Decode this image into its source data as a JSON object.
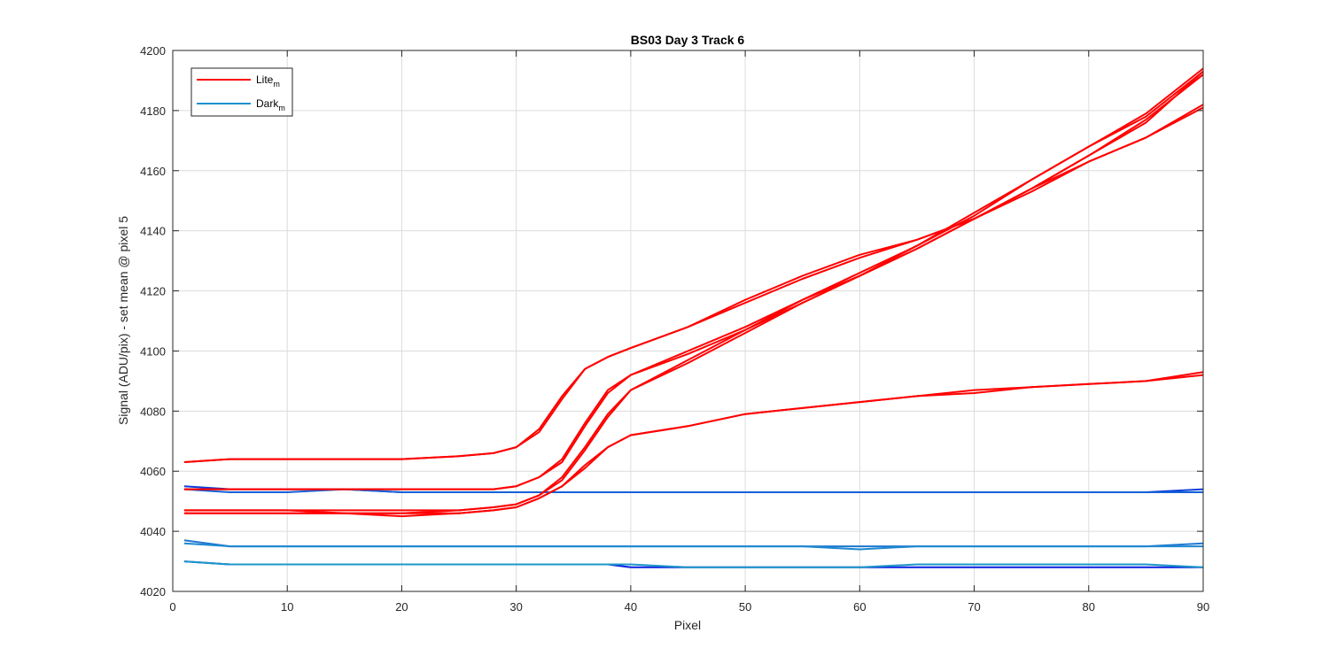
{
  "chart_data": {
    "type": "line",
    "title": "BS03 Day 3 Track 6",
    "xlabel": "Pixel",
    "ylabel": "Signal (ADU/pix) - set mean @ pixel 5",
    "xlim": [
      0,
      90
    ],
    "ylim": [
      4020,
      4200
    ],
    "xticks": [
      0,
      10,
      20,
      30,
      40,
      50,
      60,
      70,
      80,
      90
    ],
    "yticks": [
      4020,
      4040,
      4060,
      4080,
      4100,
      4120,
      4140,
      4160,
      4180,
      4200
    ],
    "grid": true,
    "legend": {
      "placement": "top-left",
      "entries": [
        {
          "label": "Lite",
          "subscript": "m",
          "color": "#ff0000"
        },
        {
          "label": "Dark",
          "subscript": "m",
          "color": "#1e90d0"
        }
      ]
    },
    "x": [
      1,
      5,
      10,
      15,
      20,
      25,
      28,
      30,
      32,
      34,
      36,
      38,
      40,
      45,
      50,
      55,
      60,
      65,
      70,
      75,
      80,
      85,
      90
    ],
    "series": [
      {
        "group": "Lite",
        "color": "#ff0000",
        "values": [
          4063,
          4064,
          4064,
          4064,
          4064,
          4065,
          4066,
          4068,
          4074,
          4085,
          4094,
          4098,
          4101,
          4108,
          4116,
          4124,
          4131,
          4137,
          4144,
          4154,
          4165,
          4177,
          4192
        ]
      },
      {
        "group": "Lite",
        "color": "#ff0000",
        "values": [
          4063,
          4064,
          4064,
          4064,
          4064,
          4065,
          4066,
          4068,
          4073,
          4084,
          4094,
          4098,
          4101,
          4108,
          4117,
          4125,
          4132,
          4137,
          4144,
          4154,
          4165,
          4176,
          4193
        ]
      },
      {
        "group": "Lite",
        "color": "#ff0000",
        "values": [
          4054,
          4054,
          4054,
          4054,
          4054,
          4054,
          4054,
          4055,
          4058,
          4064,
          4076,
          4087,
          4092,
          4100,
          4108,
          4117,
          4125,
          4134,
          4144,
          4154,
          4163,
          4171,
          4182
        ]
      },
      {
        "group": "Lite",
        "color": "#ff0000",
        "values": [
          4054,
          4054,
          4054,
          4054,
          4054,
          4054,
          4054,
          4055,
          4058,
          4063,
          4075,
          4086,
          4092,
          4099,
          4107,
          4116,
          4125,
          4134,
          4144,
          4153,
          4163,
          4171,
          4181
        ]
      },
      {
        "group": "Lite",
        "color": "#ff0000",
        "values": [
          4047,
          4047,
          4047,
          4047,
          4047,
          4047,
          4048,
          4049,
          4052,
          4058,
          4068,
          4079,
          4087,
          4097,
          4107,
          4117,
          4126,
          4135,
          4146,
          4157,
          4168,
          4178,
          4193
        ]
      },
      {
        "group": "Lite",
        "color": "#ff0000",
        "values": [
          4047,
          4047,
          4047,
          4046,
          4046,
          4047,
          4048,
          4049,
          4052,
          4057,
          4067,
          4078,
          4087,
          4096,
          4106,
          4116,
          4125,
          4135,
          4145,
          4157,
          4168,
          4179,
          4194
        ]
      },
      {
        "group": "Lite",
        "color": "#ff0000",
        "values": [
          4046,
          4046,
          4046,
          4046,
          4046,
          4046,
          4047,
          4048,
          4051,
          4055,
          4062,
          4068,
          4072,
          4075,
          4079,
          4081,
          4083,
          4085,
          4086,
          4088,
          4089,
          4090,
          4092
        ]
      },
      {
        "group": "Lite",
        "color": "#ff0000",
        "values": [
          4046,
          4046,
          4046,
          4046,
          4045,
          4046,
          4047,
          4048,
          4051,
          4055,
          4061,
          4068,
          4072,
          4075,
          4079,
          4081,
          4083,
          4085,
          4087,
          4088,
          4089,
          4090,
          4093
        ]
      },
      {
        "group": "Dark",
        "color": "#0a3ed8",
        "values": [
          4055,
          4054,
          4054,
          4054,
          4053,
          4053,
          4053,
          4053,
          4053,
          4053,
          4053,
          4053,
          4053,
          4053,
          4053,
          4053,
          4053,
          4053,
          4053,
          4053,
          4053,
          4053,
          4054
        ]
      },
      {
        "group": "Dark",
        "color": "#1560d8",
        "values": [
          4054,
          4053,
          4053,
          4054,
          4053,
          4053,
          4053,
          4053,
          4053,
          4053,
          4053,
          4053,
          4053,
          4053,
          4053,
          4053,
          4053,
          4053,
          4053,
          4053,
          4053,
          4053,
          4053
        ]
      },
      {
        "group": "Dark",
        "color": "#1e78d0",
        "values": [
          4037,
          4035,
          4035,
          4035,
          4035,
          4035,
          4035,
          4035,
          4035,
          4035,
          4035,
          4035,
          4035,
          4035,
          4035,
          4035,
          4035,
          4035,
          4035,
          4035,
          4035,
          4035,
          4036
        ]
      },
      {
        "group": "Dark",
        "color": "#1e88d0",
        "values": [
          4036,
          4035,
          4035,
          4035,
          4035,
          4035,
          4035,
          4035,
          4035,
          4035,
          4035,
          4035,
          4035,
          4035,
          4035,
          4035,
          4034,
          4035,
          4035,
          4035,
          4035,
          4035,
          4035
        ]
      },
      {
        "group": "Dark",
        "color": "#0a20e0",
        "values": [
          4030,
          4029,
          4029,
          4029,
          4029,
          4029,
          4029,
          4029,
          4029,
          4029,
          4029,
          4029,
          4028,
          4028,
          4028,
          4028,
          4028,
          4028,
          4028,
          4028,
          4028,
          4028,
          4028
        ]
      },
      {
        "group": "Dark",
        "color": "#1e98c8",
        "values": [
          4030,
          4029,
          4029,
          4029,
          4029,
          4029,
          4029,
          4029,
          4029,
          4029,
          4029,
          4029,
          4029,
          4028,
          4028,
          4028,
          4028,
          4029,
          4029,
          4029,
          4029,
          4029,
          4028
        ]
      }
    ]
  }
}
